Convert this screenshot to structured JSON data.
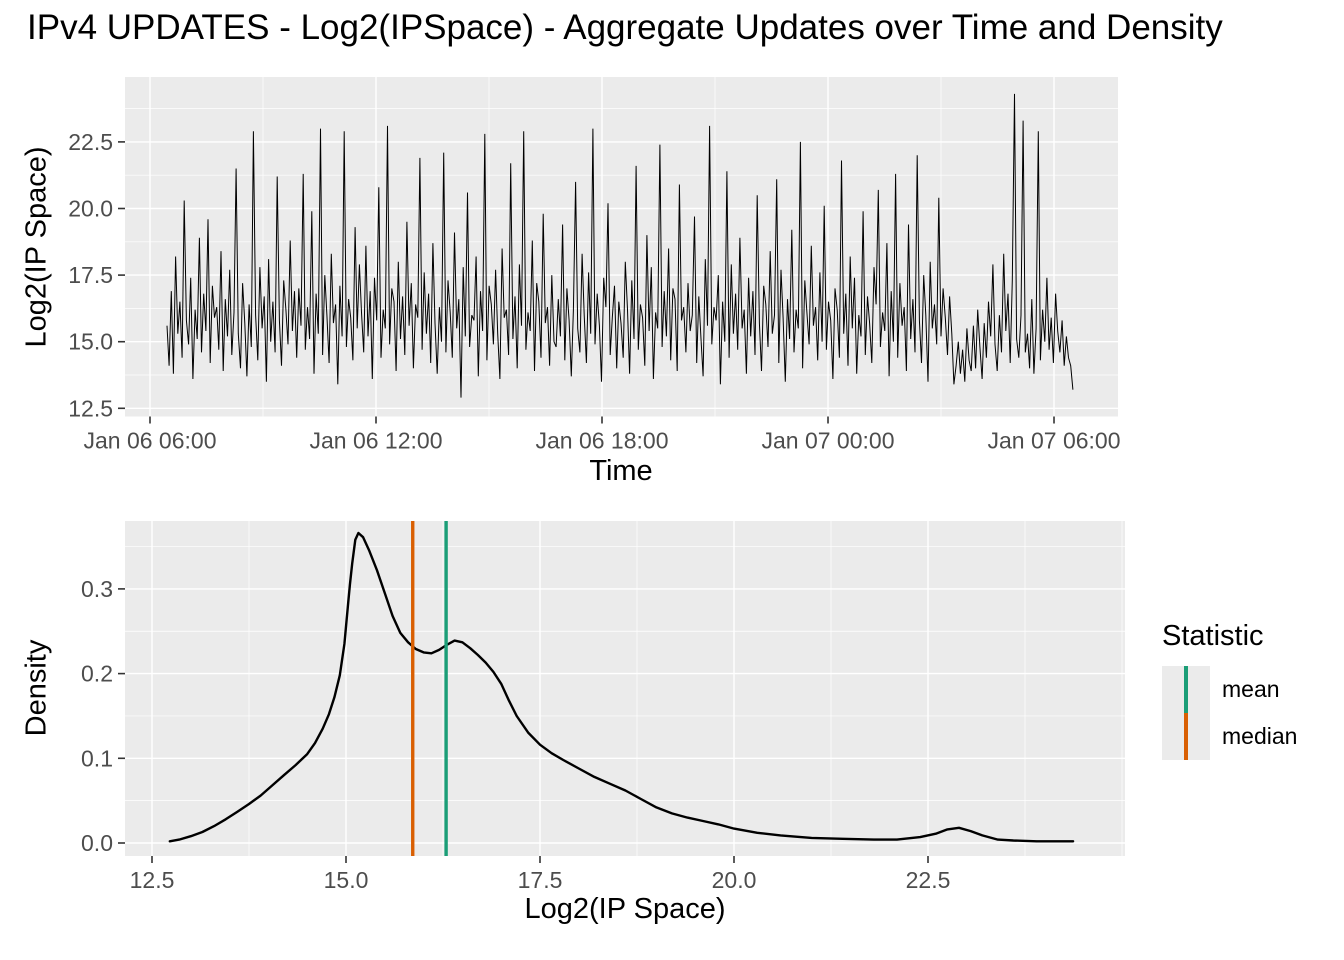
{
  "title": "IPv4 UPDATES - Log2(IPSpace) - Aggregate Updates over Time and Density",
  "colors": {
    "panel_background": "#EBEBEB",
    "gridline": "#FFFFFF",
    "series_line": "#000000",
    "tick_text": "#4D4D4D",
    "tick_mark": "#333333",
    "mean_line": "#1B9E77",
    "median_line": "#D95F02",
    "legend_key_background": "#EBEBEB"
  },
  "chart_data": [
    {
      "type": "line",
      "name": "aggregate-updates-over-time",
      "title": "",
      "xlabel": "Time",
      "ylabel": "Log2(IP Space)",
      "grid": true,
      "legend_position": "none",
      "series_color": "#000000",
      "x_axis": {
        "unit": "hours since Jan 06 00:00",
        "start_hour": 6.45,
        "step_hour": 0.0574,
        "ticks": [
          {
            "hour": 6,
            "label": "Jan 06 06:00"
          },
          {
            "hour": 12,
            "label": "Jan 06 12:00"
          },
          {
            "hour": 18,
            "label": "Jan 06 18:00"
          },
          {
            "hour": 24,
            "label": "Jan 07 00:00"
          },
          {
            "hour": 30,
            "label": "Jan 07 06:00"
          }
        ]
      },
      "y_axis": {
        "ticks": [
          {
            "value": 12.5,
            "label": "12.5"
          },
          {
            "value": 15.0,
            "label": "15.0"
          },
          {
            "value": 17.5,
            "label": "17.5"
          },
          {
            "value": 20.0,
            "label": "20.0"
          },
          {
            "value": 22.5,
            "label": "22.5"
          }
        ]
      },
      "ylim": [
        12.19,
        24.93
      ],
      "y": [
        15.6,
        14.1,
        16.9,
        13.8,
        18.2,
        15.3,
        16.5,
        14.4,
        20.3,
        15.8,
        14.9,
        17.4,
        13.6,
        16.2,
        15.1,
        18.9,
        14.6,
        16.8,
        15.4,
        19.6,
        14.2,
        17.1,
        15.9,
        16.3,
        14.7,
        18.4,
        13.9,
        16.6,
        15.2,
        17.7,
        14.5,
        16.1,
        21.5,
        15.3,
        14.0,
        17.2,
        15.7,
        13.7,
        16.4,
        14.8,
        22.9,
        16.0,
        14.3,
        17.8,
        15.5,
        16.7,
        13.5,
        18.1,
        15.0,
        16.5,
        14.6,
        21.2,
        15.8,
        14.1,
        17.3,
        16.2,
        14.9,
        18.8,
        15.4,
        16.9,
        14.4,
        17.0,
        15.6,
        21.3,
        14.7,
        16.3,
        15.1,
        19.9,
        13.8,
        16.8,
        15.3,
        23.0,
        14.5,
        17.5,
        16.0,
        14.2,
        18.3,
        15.7,
        16.4,
        13.4,
        17.1,
        15.2,
        22.9,
        14.8,
        16.6,
        15.9,
        14.3,
        19.3,
        15.5,
        17.9,
        16.1,
        14.6,
        18.6,
        15.2,
        16.9,
        13.6,
        17.4,
        15.8,
        20.8,
        14.4,
        16.2,
        15.5,
        23.1,
        14.9,
        17.0,
        16.5,
        13.9,
        18.0,
        15.1,
        16.7,
        14.5,
        19.5,
        15.6,
        17.2,
        14.0,
        16.4,
        15.9,
        21.9,
        14.7,
        17.6,
        15.3,
        16.8,
        14.2,
        18.7,
        15.7,
        13.8,
        16.3,
        15.0,
        22.1,
        14.6,
        17.3,
        16.1,
        14.4,
        19.1,
        15.5,
        16.6,
        12.9,
        17.8,
        15.2,
        20.6,
        14.8,
        16.0,
        15.8,
        18.2,
        13.7,
        16.9,
        15.4,
        22.8,
        14.3,
        17.1,
        16.4,
        14.9,
        17.7,
        15.3,
        13.6,
        18.5,
        15.9,
        16.2,
        14.5,
        21.7,
        15.1,
        16.7,
        14.0,
        17.9,
        15.6,
        22.9,
        14.7,
        16.1,
        15.4,
        18.8,
        13.9,
        17.2,
        16.5,
        14.4,
        19.8,
        15.7,
        16.3,
        14.1,
        17.5,
        15.0,
        14.8,
        16.6,
        15.2,
        19.4,
        14.3,
        17.0,
        15.8,
        13.7,
        16.2,
        21.0,
        15.5,
        14.6,
        18.3,
        16.0,
        14.2,
        17.6,
        15.3,
        23.0,
        14.9,
        16.8,
        15.6,
        13.5,
        17.4,
        16.3,
        20.2,
        14.5,
        15.9,
        17.1,
        14.0,
        16.5,
        15.7,
        14.4,
        18.0,
        16.2,
        13.8,
        17.3,
        15.1,
        21.6,
        14.7,
        16.4,
        15.9,
        14.1,
        19.0,
        15.4,
        17.8,
        13.6,
        16.1,
        15.5,
        22.4,
        14.8,
        16.9,
        15.2,
        18.5,
        14.3,
        17.0,
        16.6,
        13.9,
        20.9,
        15.8,
        16.3,
        14.6,
        17.2,
        15.4,
        16.0,
        19.7,
        14.2,
        16.7,
        15.1,
        13.7,
        18.1,
        15.6,
        23.1,
        14.9,
        16.3,
        15.8,
        17.5,
        13.4,
        16.5,
        15.0,
        21.4,
        14.4,
        17.9,
        15.3,
        16.8,
        14.7,
        18.9,
        15.5,
        16.2,
        13.8,
        17.4,
        15.2,
        16.9,
        14.5,
        20.5,
        15.7,
        13.9,
        17.1,
        16.4,
        14.8,
        18.4,
        15.3,
        16.0,
        21.1,
        14.2,
        17.7,
        15.9,
        13.5,
        16.6,
        15.1,
        19.2,
        14.6,
        16.2,
        15.5,
        22.5,
        14.0,
        17.3,
        16.1,
        14.9,
        18.6,
        15.6,
        16.3,
        14.3,
        17.6,
        15.0,
        20.1,
        14.7,
        16.5,
        15.8,
        13.6,
        17.0,
        16.2,
        14.4,
        21.8,
        15.3,
        16.8,
        14.1,
        18.2,
        15.5,
        17.4,
        13.8,
        16.0,
        15.2,
        19.9,
        14.5,
        16.7,
        15.7,
        14.2,
        17.8,
        16.4,
        20.7,
        14.8,
        16.1,
        15.4,
        18.7,
        13.7,
        16.9,
        15.0,
        21.3,
        14.4,
        17.2,
        15.6,
        16.3,
        13.9,
        19.4,
        15.1,
        16.6,
        14.6,
        22.0,
        15.8,
        14.2,
        17.5,
        16.0,
        13.5,
        18.0,
        15.5,
        16.4,
        14.9,
        20.4,
        15.2,
        17.0,
        15.9,
        14.5,
        16.7,
        15.3,
        13.4,
        14.1,
        15.0,
        13.8,
        14.7,
        13.5,
        15.5,
        14.3,
        13.9,
        15.6,
        14.0,
        16.2,
        14.8,
        13.6,
        15.7,
        14.4,
        16.5,
        15.2,
        17.9,
        14.9,
        13.9,
        16.0,
        14.6,
        18.3,
        15.4,
        16.8,
        14.2,
        17.3,
        24.3,
        15.1,
        14.4,
        16.0,
        23.3,
        14.6,
        15.3,
        14.0,
        16.6,
        13.8,
        15.5,
        22.9,
        14.3,
        16.2,
        15.0,
        17.4,
        14.7,
        15.9,
        14.2,
        16.8,
        15.4,
        14.6,
        15.8,
        14.1,
        15.2,
        14.4,
        14.1,
        13.2
      ]
    },
    {
      "type": "line",
      "name": "density-of-log2-ip-space",
      "title": "",
      "xlabel": "Log2(IP Space)",
      "ylabel": "Density",
      "grid": true,
      "legend_position": "right",
      "series_color": "#000000",
      "x_axis": {
        "ticks": [
          {
            "value": 12.5,
            "label": "12.5"
          },
          {
            "value": 15.0,
            "label": "15.0"
          },
          {
            "value": 17.5,
            "label": "17.5"
          },
          {
            "value": 20.0,
            "label": "20.0"
          },
          {
            "value": 22.5,
            "label": "22.5"
          }
        ]
      },
      "y_axis": {
        "ticks": [
          {
            "value": 0.0,
            "label": "0.0"
          },
          {
            "value": 0.1,
            "label": "0.1"
          },
          {
            "value": 0.2,
            "label": "0.2"
          },
          {
            "value": 0.3,
            "label": "0.3"
          }
        ]
      },
      "xlim": [
        12.15,
        25.04
      ],
      "ylim": [
        -0.015,
        0.38
      ],
      "points": [
        [
          12.73,
          0.002
        ],
        [
          12.85,
          0.004
        ],
        [
          13.0,
          0.008
        ],
        [
          13.15,
          0.013
        ],
        [
          13.3,
          0.02
        ],
        [
          13.45,
          0.028
        ],
        [
          13.6,
          0.037
        ],
        [
          13.75,
          0.046
        ],
        [
          13.9,
          0.056
        ],
        [
          14.05,
          0.068
        ],
        [
          14.2,
          0.08
        ],
        [
          14.35,
          0.092
        ],
        [
          14.5,
          0.105
        ],
        [
          14.6,
          0.118
        ],
        [
          14.7,
          0.135
        ],
        [
          14.78,
          0.152
        ],
        [
          14.85,
          0.172
        ],
        [
          14.92,
          0.198
        ],
        [
          14.98,
          0.235
        ],
        [
          15.03,
          0.285
        ],
        [
          15.05,
          0.305
        ],
        [
          15.08,
          0.33
        ],
        [
          15.12,
          0.358
        ],
        [
          15.16,
          0.366
        ],
        [
          15.22,
          0.361
        ],
        [
          15.3,
          0.345
        ],
        [
          15.4,
          0.322
        ],
        [
          15.5,
          0.295
        ],
        [
          15.6,
          0.268
        ],
        [
          15.7,
          0.248
        ],
        [
          15.8,
          0.237
        ],
        [
          15.9,
          0.229
        ],
        [
          16.0,
          0.225
        ],
        [
          16.1,
          0.224
        ],
        [
          16.2,
          0.228
        ],
        [
          16.3,
          0.234
        ],
        [
          16.4,
          0.239
        ],
        [
          16.5,
          0.237
        ],
        [
          16.6,
          0.23
        ],
        [
          16.7,
          0.222
        ],
        [
          16.8,
          0.213
        ],
        [
          16.9,
          0.202
        ],
        [
          17.0,
          0.188
        ],
        [
          17.1,
          0.168
        ],
        [
          17.2,
          0.15
        ],
        [
          17.35,
          0.13
        ],
        [
          17.5,
          0.116
        ],
        [
          17.65,
          0.106
        ],
        [
          17.8,
          0.098
        ],
        [
          18.0,
          0.088
        ],
        [
          18.2,
          0.078
        ],
        [
          18.4,
          0.07
        ],
        [
          18.6,
          0.062
        ],
        [
          18.8,
          0.052
        ],
        [
          19.0,
          0.042
        ],
        [
          19.2,
          0.035
        ],
        [
          19.4,
          0.03
        ],
        [
          19.6,
          0.026
        ],
        [
          19.8,
          0.022
        ],
        [
          20.0,
          0.017
        ],
        [
          20.3,
          0.012
        ],
        [
          20.6,
          0.009
        ],
        [
          21.0,
          0.006
        ],
        [
          21.4,
          0.005
        ],
        [
          21.8,
          0.004
        ],
        [
          22.1,
          0.004
        ],
        [
          22.4,
          0.007
        ],
        [
          22.6,
          0.011
        ],
        [
          22.75,
          0.016
        ],
        [
          22.9,
          0.018
        ],
        [
          23.05,
          0.014
        ],
        [
          23.2,
          0.009
        ],
        [
          23.4,
          0.004
        ],
        [
          23.6,
          0.003
        ],
        [
          23.9,
          0.002
        ],
        [
          24.15,
          0.002
        ],
        [
          24.37,
          0.002
        ]
      ],
      "stats": {
        "mean": 16.29,
        "median": 15.86
      },
      "legend": {
        "title": "Statistic",
        "entries": [
          {
            "label": "mean",
            "color": "#1B9E77"
          },
          {
            "label": "median",
            "color": "#D95F02"
          }
        ]
      }
    }
  ]
}
